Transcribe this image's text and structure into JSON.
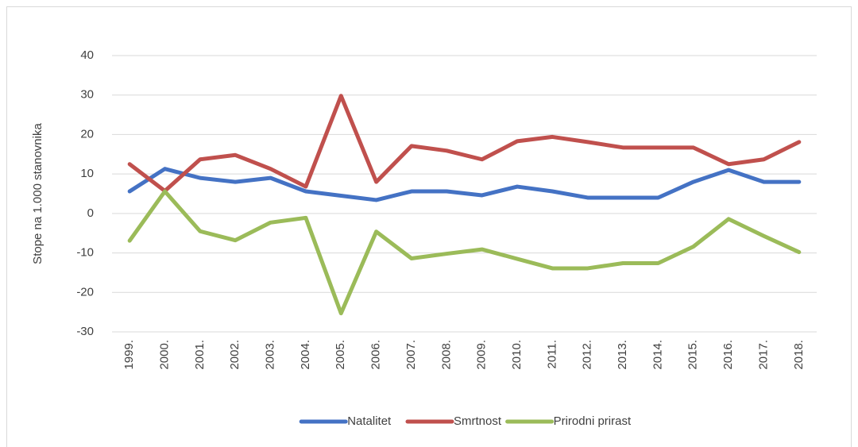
{
  "chart_data": {
    "type": "line",
    "y_label": "Stope na 1.000 stanovnika",
    "categories": [
      "1999.",
      "2000.",
      "2001.",
      "2002.",
      "2003.",
      "2004.",
      "2005.",
      "2006.",
      "2007.",
      "2008.",
      "2009.",
      "2010.",
      "2011.",
      "2012.",
      "2013.",
      "2014.",
      "2015.",
      "2016.",
      "2017.",
      "2018."
    ],
    "series": [
      {
        "name": "Natalitet",
        "color": "#4472c4",
        "values": [
          5.6,
          11.3,
          9,
          8,
          9,
          5.6,
          4.5,
          3.4,
          5.6,
          5.6,
          4.6,
          6.8,
          5.6,
          4,
          4,
          4,
          8,
          11,
          8,
          8
        ]
      },
      {
        "name": "Smrtnost",
        "color": "#c0504d",
        "values": [
          12.5,
          5.7,
          13.7,
          14.8,
          11.3,
          6.8,
          29.8,
          8,
          17.1,
          15.9,
          13.7,
          18.3,
          19.4,
          18.1,
          16.7,
          16.7,
          16.7,
          12.5,
          13.7,
          18.1
        ]
      },
      {
        "name": "Prirodni prirast",
        "color": "#9bbb59",
        "values": [
          -6.9,
          5.6,
          -4.5,
          -6.8,
          -2.3,
          -1.1,
          -25.3,
          -4.6,
          -11.4,
          -10.2,
          -9.1,
          -11.5,
          -13.9,
          -13.9,
          -12.6,
          -12.6,
          -8.4,
          -1.4,
          -5.7,
          -9.8
        ]
      }
    ],
    "ylim": [
      -30,
      40
    ],
    "yticks": [
      -30,
      -20,
      -10,
      0,
      10,
      20,
      30,
      40
    ],
    "grid": true,
    "legend": "bottom"
  }
}
